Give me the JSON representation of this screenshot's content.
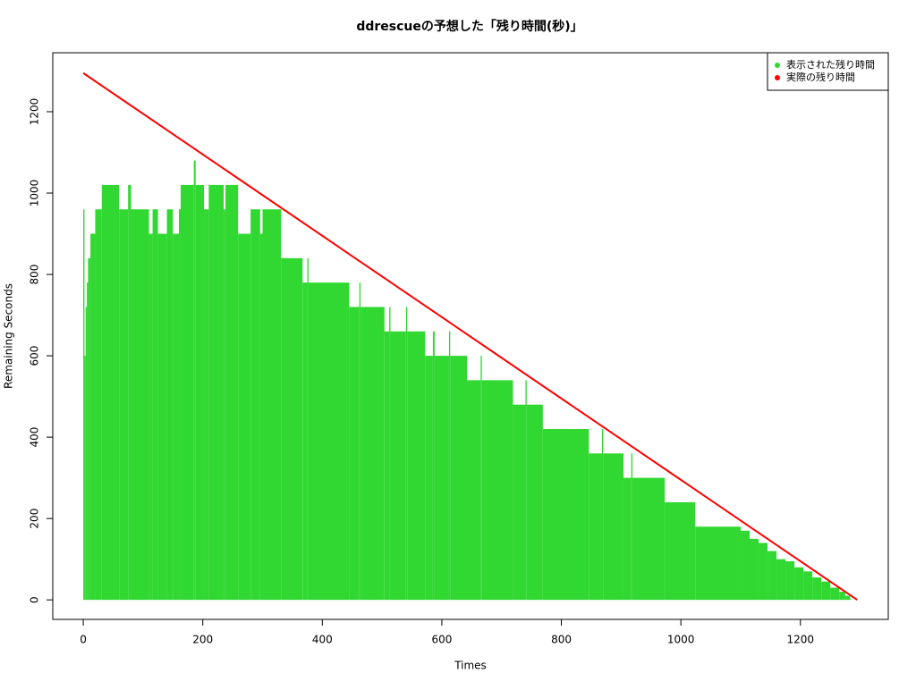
{
  "chart_data": {
    "type": "line",
    "title": "ddrescueの予想した「残り時間(秒)」",
    "x_label": "Times",
    "y_label": "Remaining Seconds",
    "xlim": [
      -51,
      1347
    ],
    "ylim": [
      -48,
      1345
    ],
    "xticks": [
      0,
      200,
      400,
      600,
      800,
      1000,
      1200
    ],
    "yticks": [
      0,
      200,
      400,
      600,
      800,
      1000,
      1200
    ],
    "legend": "top-right",
    "series": [
      {
        "name": "表示された残り時間",
        "color": "#31d831",
        "style": "h",
        "x": [
          0,
          2,
          4,
          6,
          8,
          12,
          20,
          31,
          60,
          75,
          80,
          110,
          116,
          125,
          140,
          150,
          160,
          163,
          185,
          188,
          202,
          210,
          235,
          238,
          259,
          280,
          296,
          300,
          331,
          367,
          375,
          377,
          445,
          462,
          464,
          504,
          512,
          514,
          540,
          542,
          572,
          585,
          588,
          612,
          614,
          642,
          665,
          667,
          719,
          740,
          742,
          769,
          846,
          868,
          870,
          904,
          917,
          919,
          973,
          1024,
          1100,
          1115,
          1130,
          1145,
          1160,
          1175,
          1190,
          1205,
          1220,
          1235,
          1250,
          1265,
          1275,
          1283
        ],
        "values": [
          960,
          600,
          720,
          780,
          840,
          900,
          960,
          1020,
          960,
          1020,
          960,
          900,
          960,
          900,
          960,
          900,
          960,
          1020,
          1080,
          1020,
          960,
          1020,
          960,
          1020,
          900,
          960,
          900,
          960,
          840,
          780,
          840,
          780,
          720,
          780,
          720,
          660,
          720,
          660,
          720,
          660,
          600,
          660,
          600,
          660,
          600,
          540,
          600,
          540,
          480,
          540,
          480,
          420,
          360,
          420,
          360,
          300,
          360,
          300,
          240,
          180,
          170,
          150,
          140,
          120,
          100,
          95,
          80,
          70,
          55,
          45,
          30,
          20,
          10,
          3
        ]
      },
      {
        "name": "実際の残り時間",
        "color": "#ff0000",
        "style": "line",
        "x": [
          0,
          1295
        ],
        "values": [
          1295,
          0
        ]
      }
    ]
  }
}
